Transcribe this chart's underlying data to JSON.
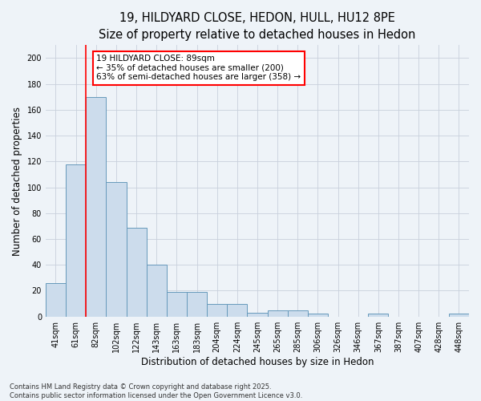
{
  "title_line1": "19, HILDYARD CLOSE, HEDON, HULL, HU12 8PE",
  "title_line2": "Size of property relative to detached houses in Hedon",
  "xlabel": "Distribution of detached houses by size in Hedon",
  "ylabel": "Number of detached properties",
  "categories": [
    "41sqm",
    "61sqm",
    "82sqm",
    "102sqm",
    "122sqm",
    "143sqm",
    "163sqm",
    "183sqm",
    "204sqm",
    "224sqm",
    "245sqm",
    "265sqm",
    "285sqm",
    "306sqm",
    "326sqm",
    "346sqm",
    "367sqm",
    "387sqm",
    "407sqm",
    "428sqm",
    "448sqm"
  ],
  "values": [
    26,
    118,
    170,
    104,
    69,
    40,
    19,
    19,
    10,
    10,
    3,
    5,
    5,
    2,
    0,
    0,
    2,
    0,
    0,
    0,
    2
  ],
  "bar_color": "#ccdcec",
  "bar_edge_color": "#6699bb",
  "red_line_x": 1.5,
  "annotation_line1": "19 HILDYARD CLOSE: 89sqm",
  "annotation_line2": "← 35% of detached houses are smaller (200)",
  "annotation_line3": "63% of semi-detached houses are larger (358) →",
  "annotation_box_facecolor": "white",
  "annotation_box_edgecolor": "red",
  "ylim_max": 210,
  "yticks": [
    0,
    20,
    40,
    60,
    80,
    100,
    120,
    140,
    160,
    180,
    200
  ],
  "footer_text": "Contains HM Land Registry data © Crown copyright and database right 2025.\nContains public sector information licensed under the Open Government Licence v3.0.",
  "bg_color": "#eef3f8",
  "grid_color": "#c8d0dc",
  "title_fontsize": 10.5,
  "subtitle_fontsize": 9.5,
  "tick_fontsize": 7,
  "ylabel_fontsize": 8.5,
  "xlabel_fontsize": 8.5,
  "annotation_fontsize": 7.5,
  "footer_fontsize": 6
}
